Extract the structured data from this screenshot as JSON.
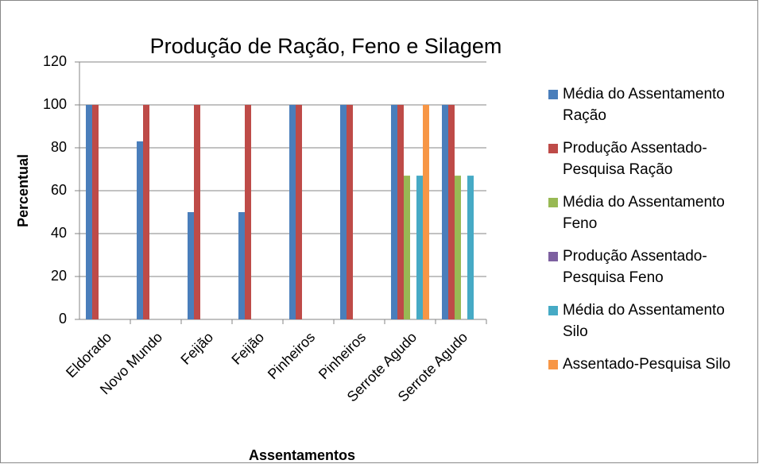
{
  "chart_data": {
    "type": "bar",
    "title": "Produção de Ração, Feno e Silagem",
    "x_label": "Assentamentos",
    "y_label": "Percentual",
    "categories": [
      "Eldorado",
      "Novo Mundo",
      "Feijão",
      "Feijão",
      "Pinheiros",
      "Pinheiros",
      "Serrote Agudo",
      "Serrote Agudo"
    ],
    "series": [
      {
        "name": "Média do Assentamento Ração",
        "color": "#4a7ebb",
        "values": [
          100,
          83,
          50,
          50,
          100,
          100,
          100,
          100
        ]
      },
      {
        "name": "Produção Assentado-Pesquisa Ração",
        "color": "#be4b48",
        "values": [
          100,
          100,
          100,
          100,
          100,
          100,
          100,
          100
        ]
      },
      {
        "name": "Média do Assentamento Feno",
        "color": "#98b954",
        "values": [
          0,
          0,
          0,
          0,
          0,
          0,
          67,
          67
        ]
      },
      {
        "name": "Produção Assentado-Pesquisa Feno",
        "color": "#7d60a0",
        "values": [
          0,
          0,
          0,
          0,
          0,
          0,
          0,
          0
        ]
      },
      {
        "name": "Média do Assentamento Silo",
        "color": "#46aac5",
        "values": [
          0,
          0,
          0,
          0,
          0,
          0,
          67,
          67
        ]
      },
      {
        "name": "Assentado-Pesquisa Silo",
        "color": "#f79646",
        "values": [
          0,
          0,
          0,
          0,
          0,
          0,
          100,
          0
        ]
      }
    ],
    "ylim": [
      0,
      120
    ],
    "yticks": [
      0,
      20,
      40,
      60,
      80,
      100,
      120
    ],
    "grid": true,
    "legend": "right"
  }
}
